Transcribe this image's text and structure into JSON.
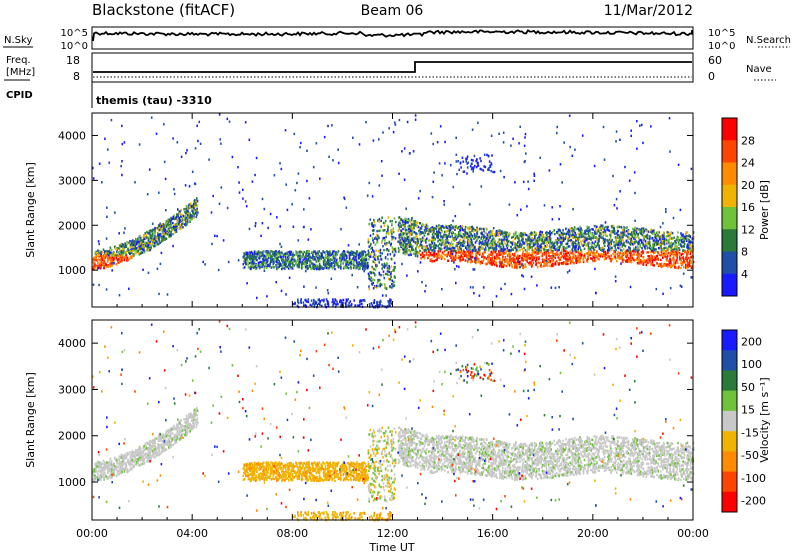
{
  "header": {
    "station": "Blackstone (fitACF)",
    "beam": "Beam 06",
    "date": "11/Mar/2012"
  },
  "noise": {
    "left_label": "N.Sky",
    "right_label": "N.Search",
    "tick_high": "10^5",
    "tick_low": "10^0"
  },
  "freq": {
    "label_line1": "Freq.",
    "label_line2": "[MHz]",
    "cpid_label": "CPID",
    "tick_high": "18",
    "tick_low": "8",
    "nave_label": "Nave",
    "nave_tick_high": "60",
    "nave_tick_low": "0",
    "cpid_text": "themis (tau) -3310"
  },
  "colors": {
    "power": [
      "#1a1aff",
      "#1f4fa8",
      "#2a7a3a",
      "#6fc33a",
      "#f0b400",
      "#ff8c00",
      "#ff4500",
      "#ff0000"
    ],
    "velocity": [
      "#1a1aff",
      "#1f4fa8",
      "#2a7a3a",
      "#6fc33a",
      "#c8c8c8",
      "#f0b400",
      "#ff8c00",
      "#ff4500",
      "#ff0000"
    ],
    "ground_scatter": "#c8c8c8"
  },
  "chart_data": [
    {
      "type": "heatmap",
      "name": "power",
      "ylabel": "Slant Range [km]",
      "ylim": [
        180,
        4500
      ],
      "y_ticks": [
        1000,
        2000,
        3000,
        4000
      ],
      "colorbar_label": "Power [dB]",
      "colorbar_ticks": [
        4,
        8,
        12,
        16,
        20,
        24,
        28
      ],
      "colorbar_range": [
        0,
        32
      ]
    },
    {
      "type": "heatmap",
      "name": "velocity",
      "ylabel": "Slant Range [km]",
      "ylim": [
        180,
        4500
      ],
      "y_ticks": [
        1000,
        2000,
        3000,
        4000
      ],
      "colorbar_label": "Velocity [m s⁻¹]",
      "colorbar_ticks": [
        "200",
        "100",
        "50",
        "15",
        "-15",
        "-50",
        "-100",
        "-200"
      ]
    }
  ],
  "time_axis": {
    "label": "Time UT",
    "ticks": [
      "00:00",
      "04:00",
      "08:00",
      "12:00",
      "16:00",
      "20:00",
      "00:00"
    ],
    "range_hours": [
      0,
      24
    ]
  }
}
